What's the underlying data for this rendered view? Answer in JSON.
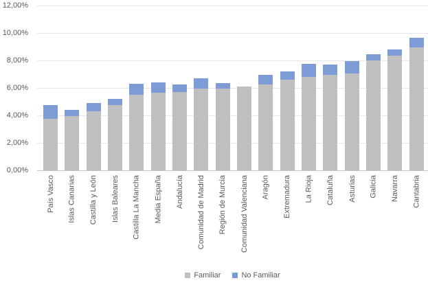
{
  "chart_data": {
    "type": "bar",
    "stacked": true,
    "title": "",
    "xlabel": "",
    "ylabel": "",
    "grid": true,
    "legend_position": "bottom",
    "ylim": [
      0,
      12
    ],
    "ytick_step": 2,
    "ytick_labels_top_down": [
      "12,00%",
      "10,00%",
      "8,00%",
      "6,00%",
      "4,00%",
      "2,00%",
      "0,00%"
    ],
    "value_unit": "percent",
    "categories": [
      "País Vasco",
      "Islas Canarias",
      "Castilla y León",
      "Islas Baleares",
      "Castilla La Mancha",
      "Media España",
      "Andalucía",
      "Comunidad de Madrid",
      "Región de Murcia",
      "Comunidad Valenciana",
      "Aragón",
      "Extremadura",
      "La Rioja",
      "Cataluña",
      "Asturias",
      "Galicia",
      "Navarra",
      "Cantabria"
    ],
    "series": [
      {
        "name": "Familiar",
        "color": "#bfbfbf",
        "values": [
          3.75,
          3.95,
          4.3,
          4.75,
          5.5,
          5.65,
          5.7,
          5.95,
          5.95,
          6.1,
          6.25,
          6.6,
          6.8,
          6.95,
          7.05,
          8.0,
          8.35,
          8.95
        ]
      },
      {
        "name": "No Familiar",
        "color": "#7d9bd4",
        "values": [
          1.0,
          0.45,
          0.6,
          0.45,
          0.8,
          0.75,
          0.55,
          0.75,
          0.4,
          0.0,
          0.7,
          0.6,
          0.95,
          0.75,
          0.9,
          0.45,
          0.45,
          0.7
        ]
      }
    ]
  },
  "colors": {
    "background": "#ffffff",
    "gridline": "#e7e7e7",
    "axis_line": "#c3c3c3",
    "text": "#595959"
  }
}
